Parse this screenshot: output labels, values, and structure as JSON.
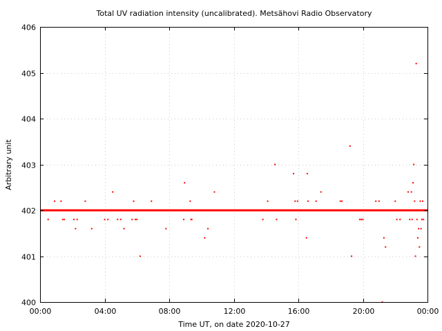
{
  "chart_data": {
    "type": "scatter",
    "title": "Total UV radiation intensity (uncalibrated). Metsähovi Radio Observatory",
    "xlabel": "Time UT, on date 2020-10-27",
    "ylabel": "Arbitrary unit",
    "xlim": [
      0,
      24
    ],
    "ylim": [
      400,
      406
    ],
    "x_tick_labels": [
      "00:00",
      "04:00",
      "08:00",
      "12:00",
      "16:00",
      "20:00",
      "00:00"
    ],
    "y_tick_labels": [
      "400",
      "401",
      "402",
      "403",
      "404",
      "405",
      "406"
    ],
    "grid": true,
    "marker_color": "#ff0000",
    "baseline": {
      "value": 402.0,
      "x_start": 0.0,
      "x_end": 24.0,
      "note_free": true
    },
    "series": [
      {
        "x": [
          0.5,
          0.9,
          1.3,
          1.4,
          1.5,
          2.1,
          2.2,
          2.3,
          2.8,
          3.2,
          4.0,
          4.2,
          4.5,
          4.8,
          5.0,
          5.2,
          5.7,
          5.8,
          5.9,
          6.0,
          6.2,
          6.9,
          7.8,
          8.9,
          8.95,
          9.3,
          9.35,
          9.4,
          10.2,
          10.4,
          10.8,
          13.8,
          14.1,
          14.55,
          14.65,
          15.7,
          15.8,
          15.85,
          15.95,
          16.5,
          16.55,
          16.6,
          17.1,
          17.4,
          18.6,
          18.7,
          19.2,
          19.3,
          19.8,
          19.9,
          20.0,
          20.8,
          21.0,
          21.2,
          21.3,
          21.4,
          22.0,
          22.1,
          22.3,
          22.8,
          22.9,
          23.0,
          23.05,
          23.1,
          23.15,
          23.2,
          23.25,
          23.3,
          23.35,
          23.4,
          23.45,
          23.5,
          23.55,
          23.6,
          23.65,
          23.7,
          23.75,
          23.8
        ],
        "y": [
          401.8,
          402.2,
          402.2,
          401.8,
          401.8,
          401.8,
          401.6,
          401.8,
          402.2,
          401.6,
          401.8,
          401.8,
          402.4,
          401.8,
          401.8,
          401.6,
          401.8,
          402.2,
          401.8,
          401.8,
          401.0,
          402.2,
          401.6,
          401.8,
          402.6,
          402.2,
          401.8,
          401.8,
          401.4,
          401.6,
          402.4,
          401.8,
          402.2,
          403.0,
          401.8,
          402.8,
          402.2,
          401.8,
          402.2,
          401.4,
          402.8,
          402.2,
          402.2,
          402.4,
          402.2,
          402.2,
          403.4,
          401.0,
          401.8,
          401.8,
          401.8,
          402.2,
          402.2,
          400.0,
          401.4,
          401.2,
          402.2,
          401.8,
          401.8,
          402.4,
          401.8,
          402.4,
          401.8,
          402.6,
          403.0,
          402.2,
          401.0,
          405.2,
          401.8,
          401.4,
          401.6,
          401.2,
          402.2,
          401.6,
          401.8,
          402.2,
          401.8,
          402.0
        ]
      }
    ]
  }
}
